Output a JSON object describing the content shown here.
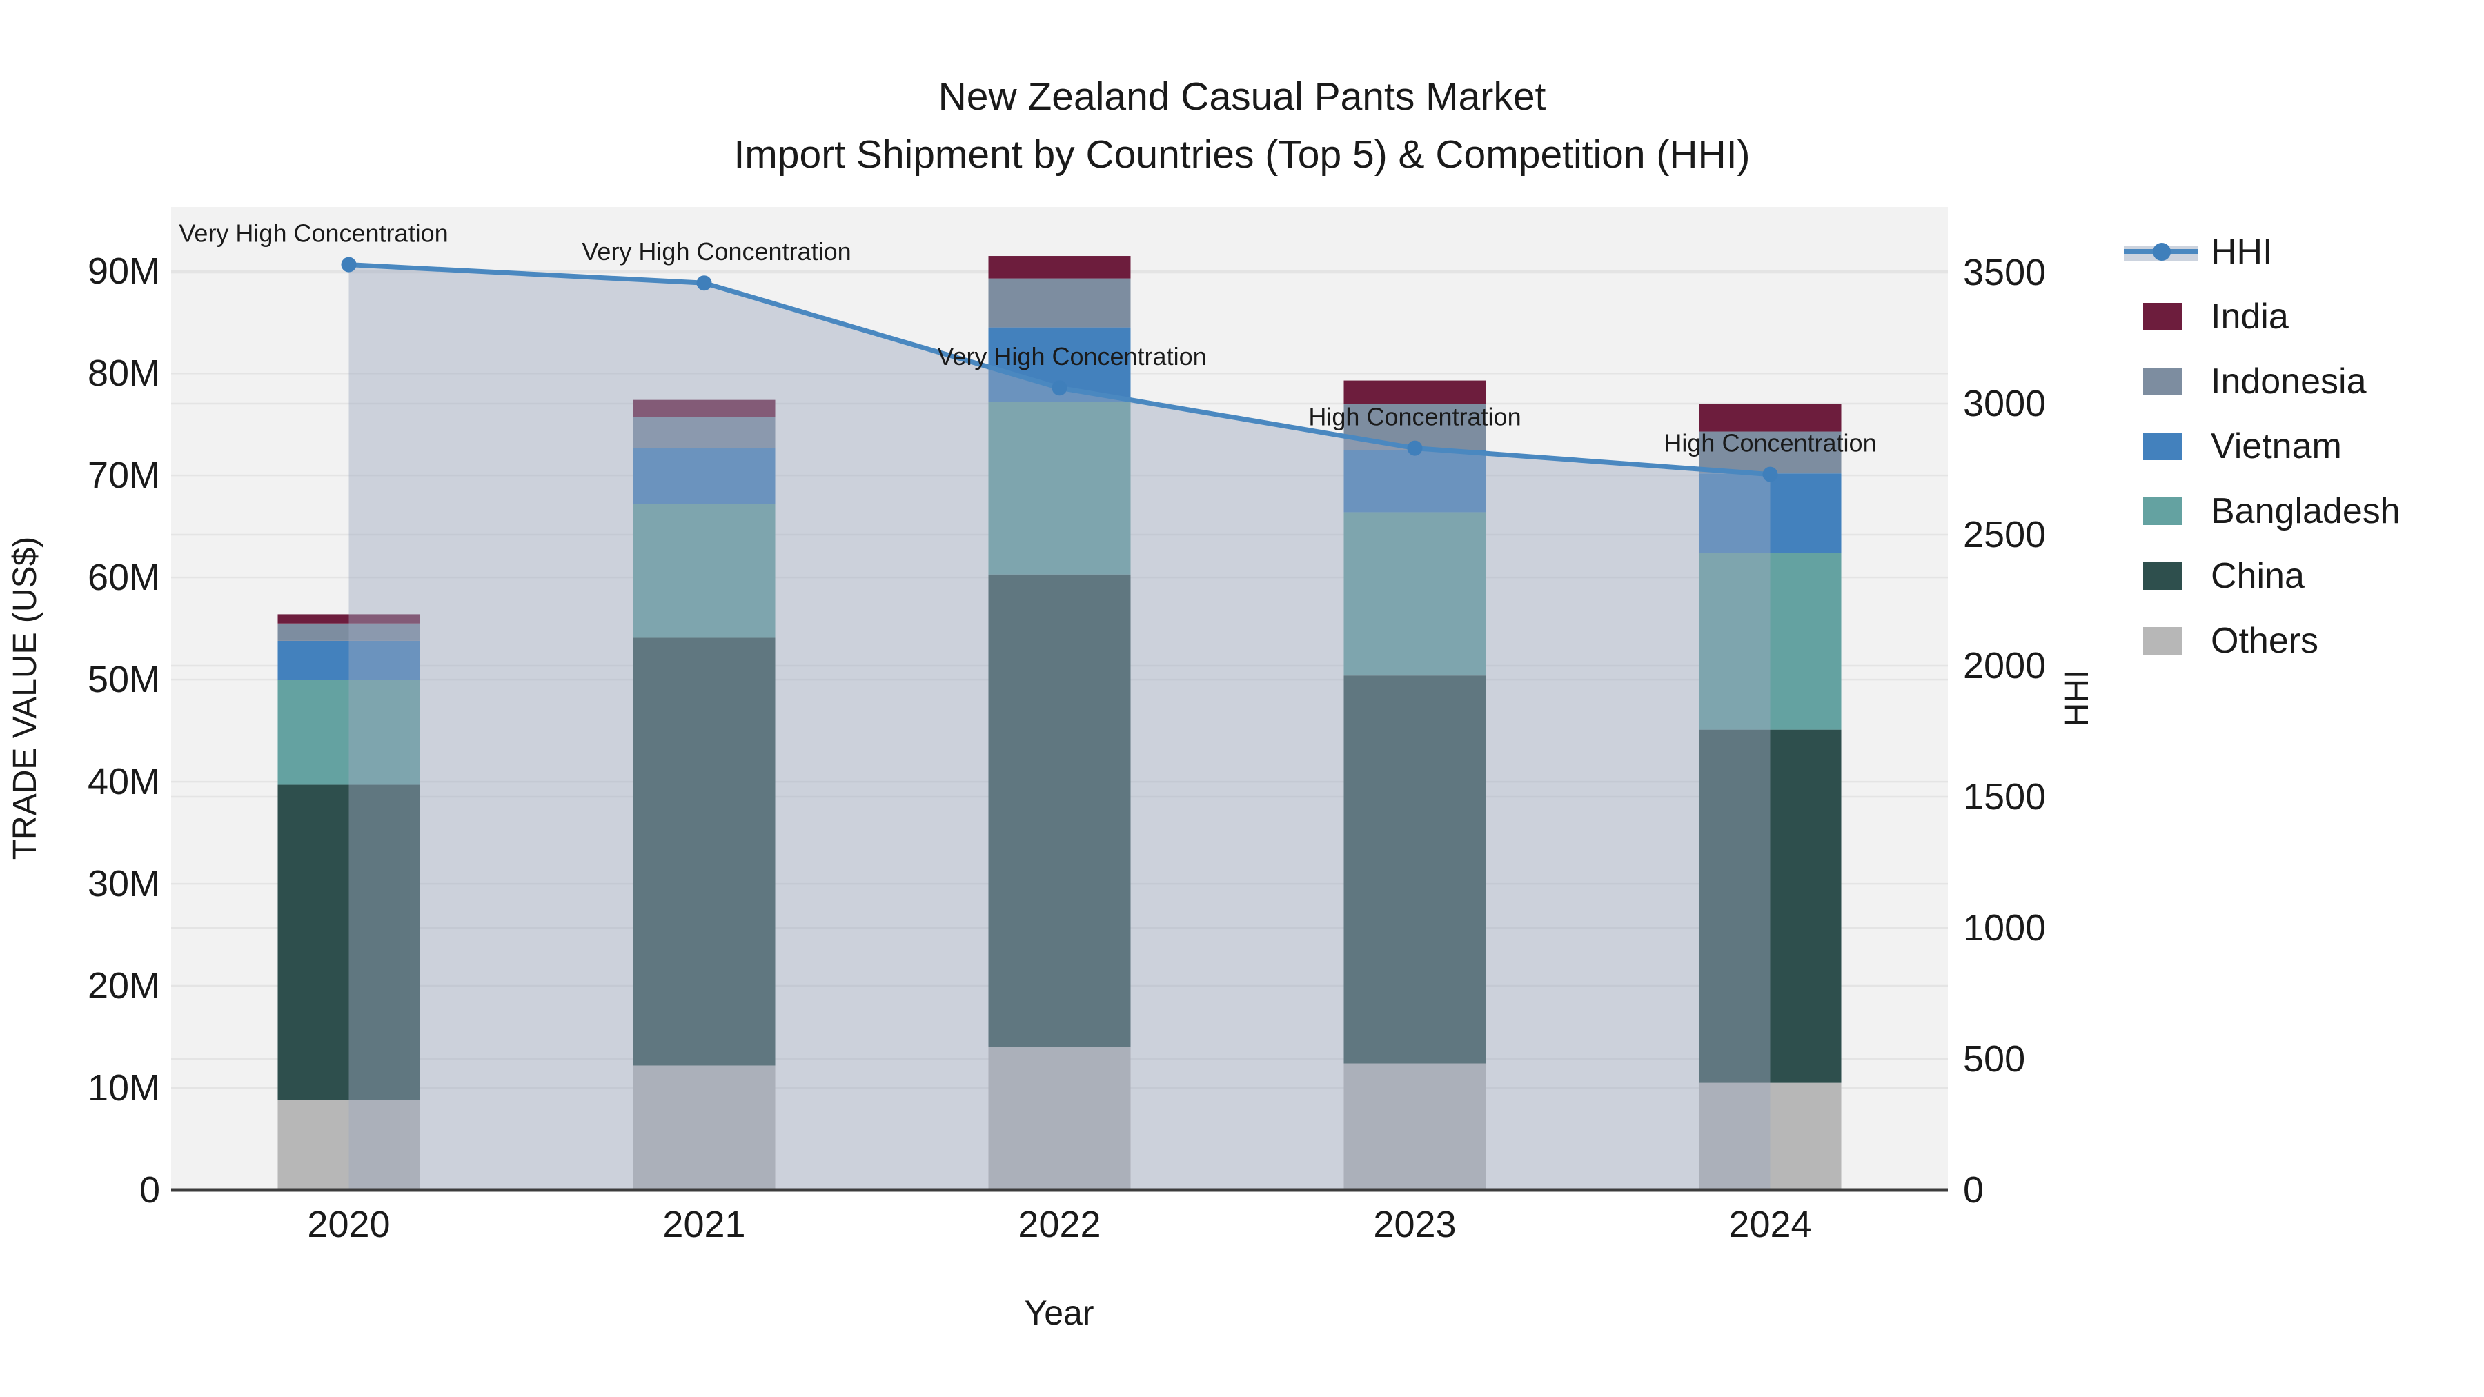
{
  "title": {
    "line1": "New Zealand Casual Pants Market",
    "line2": "Import Shipment by Countries (Top 5) & Competition (HHI)"
  },
  "axes": {
    "x_title": "Year",
    "y_left_title": "TRADE VALUE (US$)",
    "y_right_title": "HHI",
    "y_left_ticks": [
      {
        "label": "0",
        "value": 0
      },
      {
        "label": "10M",
        "value": 10
      },
      {
        "label": "20M",
        "value": 20
      },
      {
        "label": "30M",
        "value": 30
      },
      {
        "label": "40M",
        "value": 40
      },
      {
        "label": "50M",
        "value": 50
      },
      {
        "label": "60M",
        "value": 60
      },
      {
        "label": "70M",
        "value": 70
      },
      {
        "label": "80M",
        "value": 80
      },
      {
        "label": "90M",
        "value": 90
      }
    ],
    "y_right_ticks": [
      {
        "label": "0",
        "value": 0
      },
      {
        "label": "500",
        "value": 500
      },
      {
        "label": "1000",
        "value": 1000
      },
      {
        "label": "1500",
        "value": 1500
      },
      {
        "label": "2000",
        "value": 2000
      },
      {
        "label": "2500",
        "value": 2500
      },
      {
        "label": "3000",
        "value": 3000
      },
      {
        "label": "3500",
        "value": 3500
      }
    ]
  },
  "chart_data": {
    "type": "bar+line",
    "title": "New Zealand Casual Pants Market — Import Shipment by Countries (Top 5) & Competition (HHI)",
    "xlabel": "Year",
    "ylabel_left": "TRADE VALUE (US$)",
    "ylabel_right": "HHI",
    "categories": [
      "2020",
      "2021",
      "2022",
      "2023",
      "2024"
    ],
    "units": "million US$",
    "stack_order_bottom_to_top": [
      "Others",
      "China",
      "Bangladesh",
      "Vietnam",
      "Indonesia",
      "India"
    ],
    "series": [
      {
        "name": "Others",
        "color": "#b7b7b7",
        "values": [
          8.8,
          12.2,
          14.0,
          12.4,
          10.5
        ]
      },
      {
        "name": "China",
        "color": "#2e4f4d",
        "values": [
          30.9,
          41.9,
          46.3,
          38.0,
          34.6
        ]
      },
      {
        "name": "Bangladesh",
        "color": "#64a2a1",
        "values": [
          10.3,
          13.1,
          16.9,
          16.0,
          17.3
        ]
      },
      {
        "name": "Vietnam",
        "color": "#4381bd",
        "values": [
          3.8,
          5.5,
          7.3,
          6.1,
          7.8
        ]
      },
      {
        "name": "Indonesia",
        "color": "#7d8da0",
        "values": [
          1.7,
          3.0,
          4.8,
          4.5,
          4.1
        ]
      },
      {
        "name": "India",
        "color": "#6d1d3d",
        "values": [
          0.9,
          1.7,
          2.2,
          2.3,
          2.7
        ]
      }
    ],
    "bar_totals": [
      56.4,
      77.4,
      91.5,
      79.3,
      77.0
    ],
    "hhi_line": {
      "name": "HHI",
      "color": "#4a88c0",
      "marker_color": "#3f7fbb",
      "area_fill": "rgba(158,168,190,0.45)",
      "values": [
        3530,
        3460,
        3060,
        2830,
        2730
      ]
    },
    "annotations": [
      {
        "category": "2020",
        "text": "Very High Concentration"
      },
      {
        "category": "2021",
        "text": "Very High Concentration"
      },
      {
        "category": "2022",
        "text": "Very High Concentration"
      },
      {
        "category": "2023",
        "text": "High Concentration"
      },
      {
        "category": "2024",
        "text": "High Concentration"
      }
    ],
    "axis_ranges": {
      "y_left": [
        0,
        96.3
      ],
      "y_right": [
        0,
        3750
      ]
    },
    "grid": true,
    "legend_position": "right"
  },
  "legend": {
    "items": [
      {
        "label": "HHI",
        "type": "line",
        "color": "#4a88c0"
      },
      {
        "label": "India",
        "type": "swatch",
        "color": "#6d1d3d"
      },
      {
        "label": "Indonesia",
        "type": "swatch",
        "color": "#7d8da0"
      },
      {
        "label": "Vietnam",
        "type": "swatch",
        "color": "#4381bd"
      },
      {
        "label": "Bangladesh",
        "type": "swatch",
        "color": "#64a2a1"
      },
      {
        "label": "China",
        "type": "swatch",
        "color": "#2e4f4d"
      },
      {
        "label": "Others",
        "type": "swatch",
        "color": "#b7b7b7"
      }
    ]
  },
  "colors": {
    "plot_background": "#f2f2f2",
    "gridline": "#e4e4e4",
    "axis_line": "#3c3c3c",
    "text": "#1a1a1a"
  }
}
